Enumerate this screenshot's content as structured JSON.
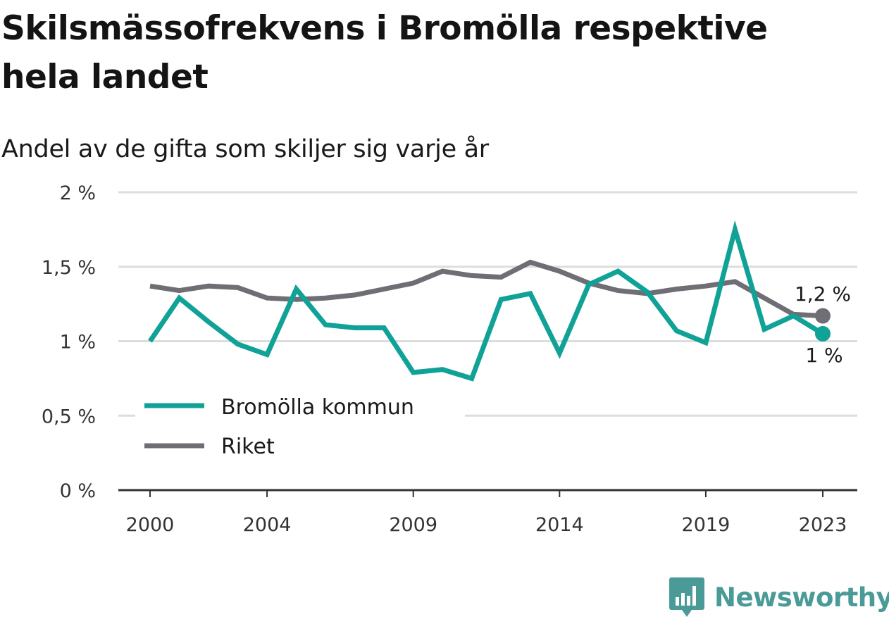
{
  "title": "Skilsmässofrekvens i Bromölla respektive hela landet",
  "subtitle": "Andel av de gifta som skiljer sig varje år",
  "brand": "Newsworthy",
  "colors": {
    "bromolla": "#10a297",
    "riket": "#6f6e75",
    "grid": "#dddddd",
    "axis": "#333333",
    "brand": "#4a9a98"
  },
  "chart_data": {
    "type": "line",
    "x": [
      2000,
      2001,
      2002,
      2003,
      2004,
      2005,
      2006,
      2007,
      2008,
      2009,
      2010,
      2011,
      2012,
      2013,
      2014,
      2015,
      2016,
      2017,
      2018,
      2019,
      2020,
      2021,
      2022,
      2023
    ],
    "xticks": [
      2000,
      2004,
      2009,
      2014,
      2019,
      2023
    ],
    "xtick_labels": [
      "2000",
      "2004",
      "2009",
      "2014",
      "2019",
      "2023"
    ],
    "yticks": [
      0,
      0.5,
      1,
      1.5,
      2
    ],
    "ytick_labels": [
      "0 %",
      "0,5 %",
      "1 %",
      "1,5 %",
      "2 %"
    ],
    "ylim": [
      0,
      2
    ],
    "grid": true,
    "legend_position": "lower-left",
    "series": [
      {
        "name": "Bromölla kommun",
        "color": "#10a297",
        "values": [
          1.0,
          1.29,
          1.13,
          0.98,
          0.91,
          1.35,
          1.11,
          1.09,
          1.09,
          0.79,
          0.81,
          0.75,
          1.28,
          1.32,
          0.92,
          1.38,
          1.47,
          1.33,
          1.07,
          0.99,
          1.75,
          1.08,
          1.17,
          1.05
        ],
        "end_label": "1 %"
      },
      {
        "name": "Riket",
        "color": "#6f6e75",
        "values": [
          1.37,
          1.34,
          1.37,
          1.36,
          1.29,
          1.28,
          1.29,
          1.31,
          1.35,
          1.39,
          1.47,
          1.44,
          1.43,
          1.53,
          1.47,
          1.39,
          1.34,
          1.32,
          1.35,
          1.37,
          1.4,
          1.29,
          1.18,
          1.17
        ],
        "end_label": "1,2 %"
      }
    ]
  }
}
